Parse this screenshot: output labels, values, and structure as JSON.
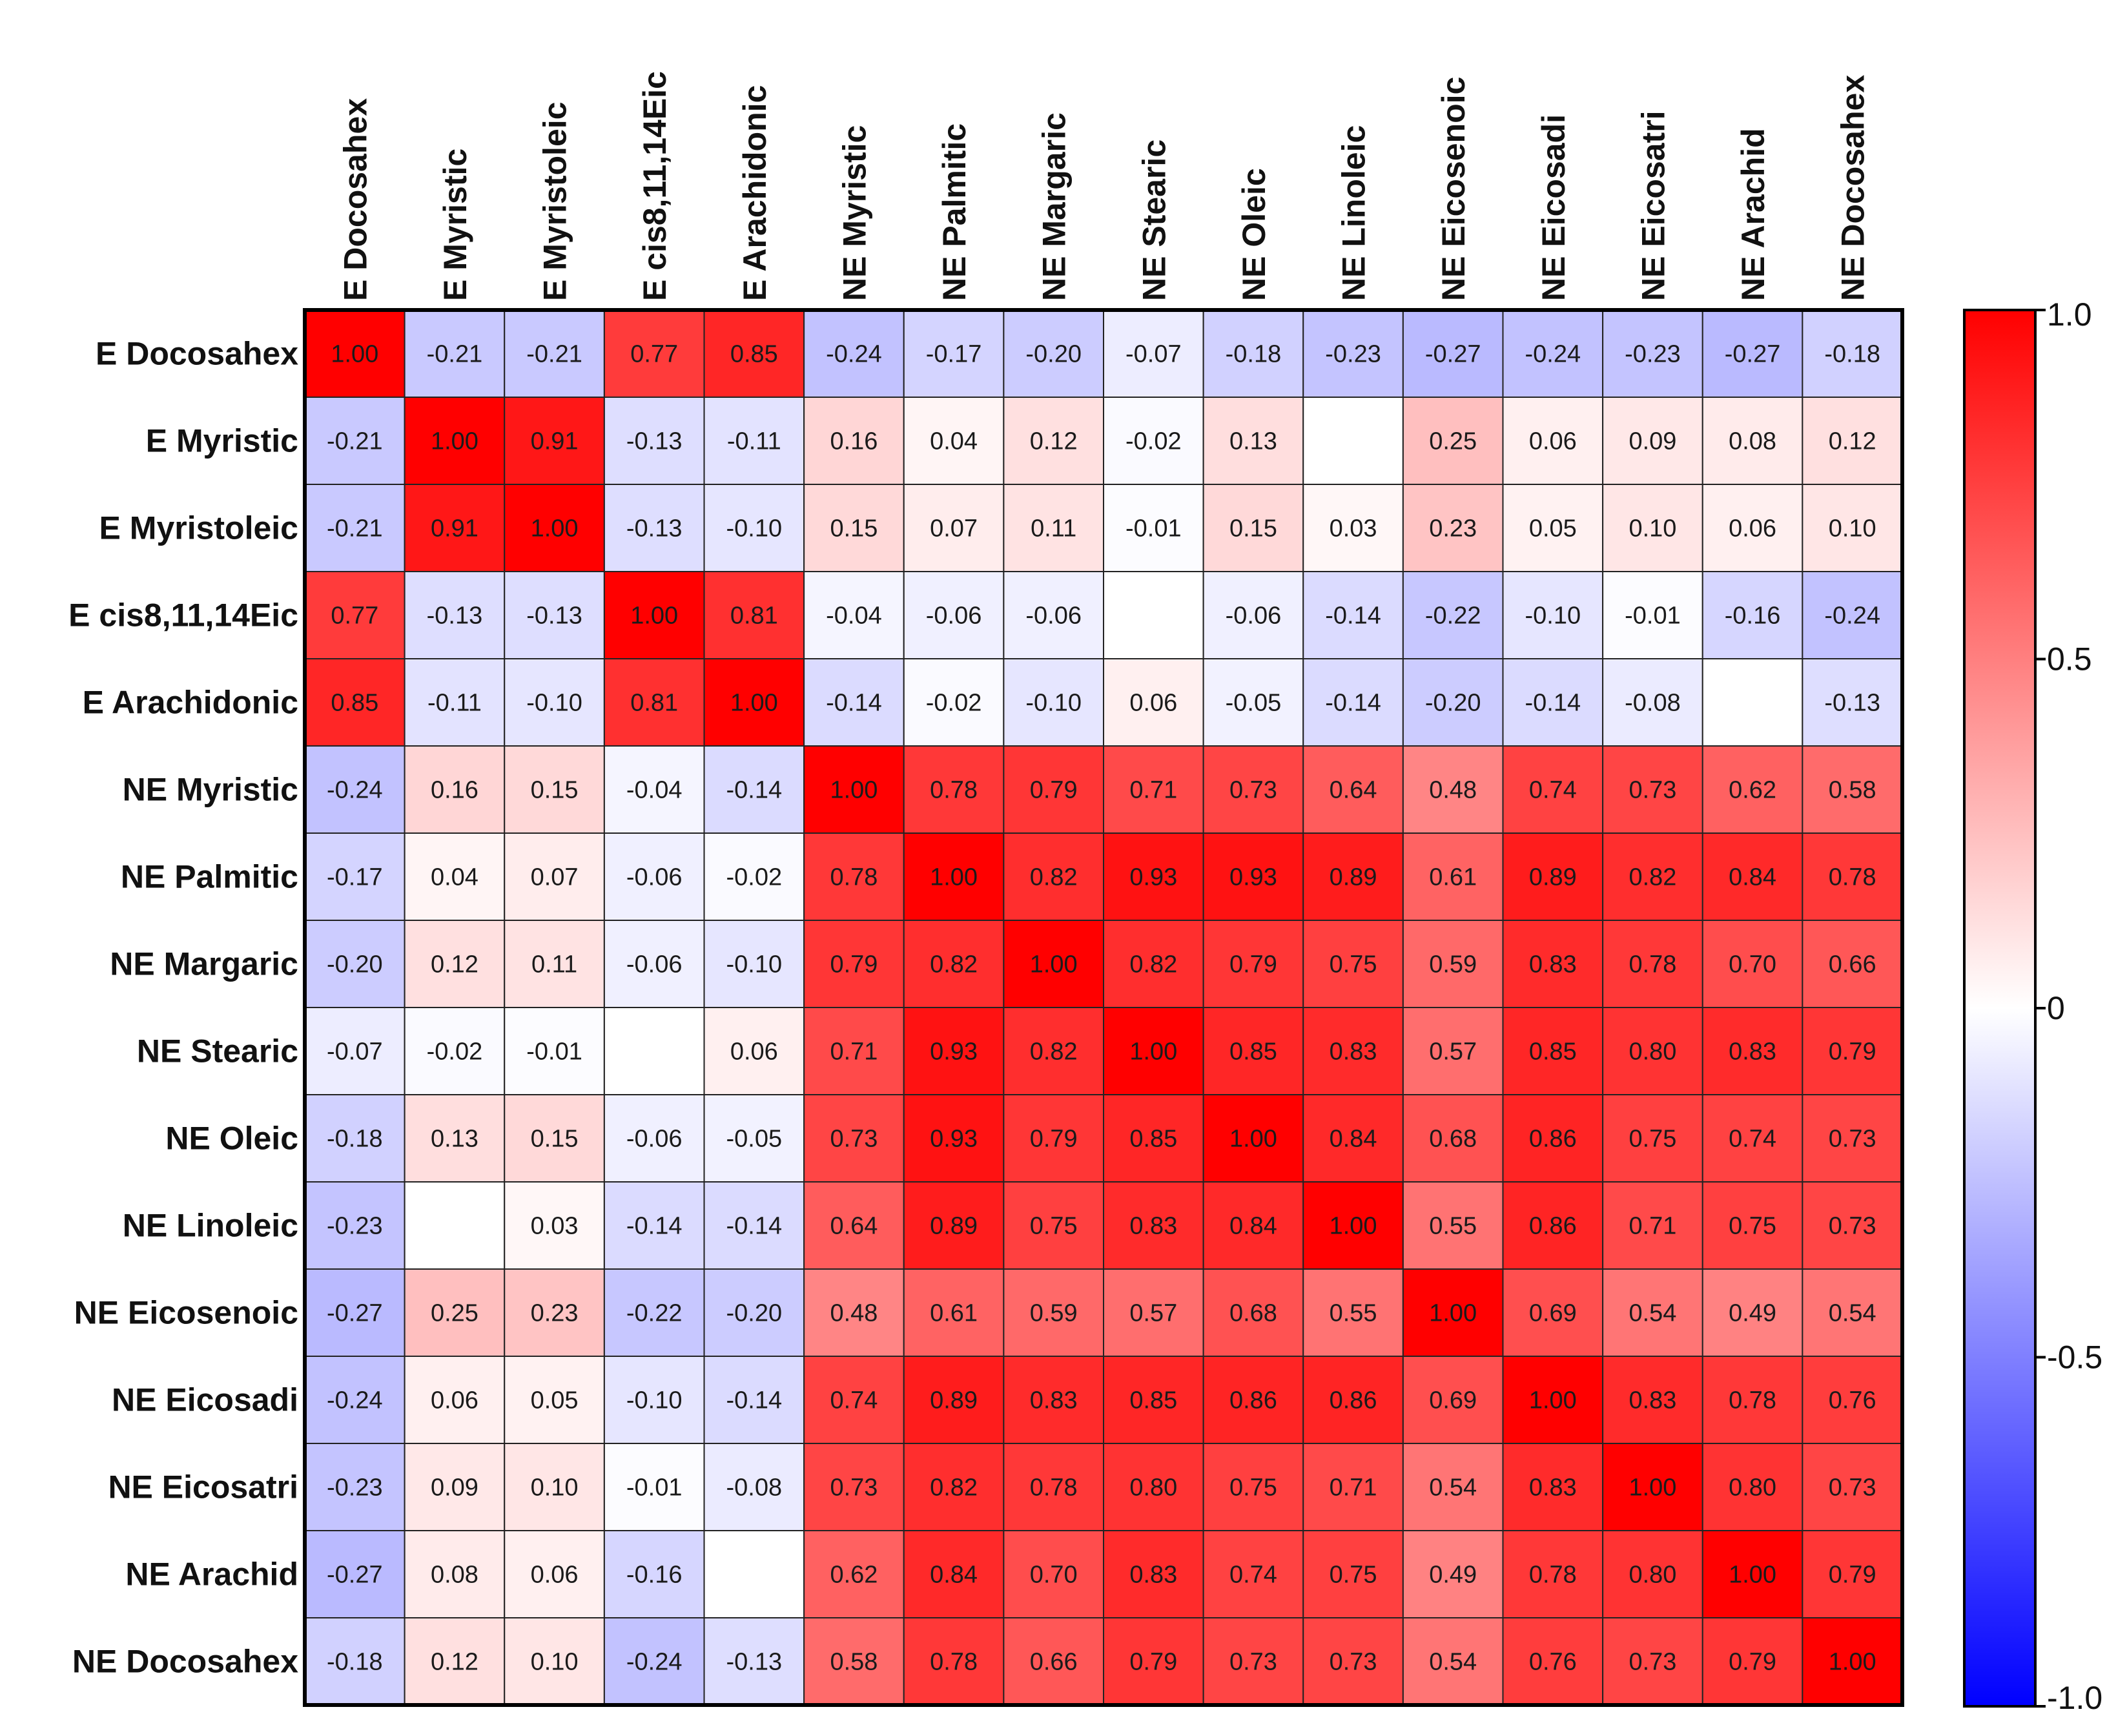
{
  "chart_data": {
    "type": "heatmap",
    "row_labels": [
      "E Docosahex",
      "E Myristic",
      "E Myristoleic",
      "E cis8,11,14Eic",
      "E Arachidonic",
      "NE Myristic",
      "NE Palmitic",
      "NE Margaric",
      "NE  Stearic",
      "NE Oleic",
      "NE Linoleic",
      "NE Eicosenoic",
      "NE Eicosadi",
      "NE Eicosatri",
      "NE Arachid",
      "NE Docosahex"
    ],
    "col_labels": [
      "E Docosahex",
      "E Myristic",
      "E Myristoleic",
      "E cis8,11,14Eic",
      "E Arachidonic",
      "NE Myristic",
      "NE Palmitic",
      "NE Margaric",
      "NE Stearic",
      "NE Oleic",
      "NE Linoleic",
      "NE Eicosenoic",
      "NE Eicosadi",
      "NE Eicosatri",
      "NE Arachid",
      "NE Docosahex"
    ],
    "values": [
      [
        1.0,
        -0.21,
        -0.21,
        0.77,
        0.85,
        -0.24,
        -0.17,
        -0.2,
        -0.07,
        -0.18,
        -0.23,
        -0.27,
        -0.24,
        -0.23,
        -0.27,
        -0.18
      ],
      [
        -0.21,
        1.0,
        0.91,
        -0.13,
        -0.11,
        0.16,
        0.04,
        0.12,
        -0.02,
        0.13,
        null,
        0.25,
        0.06,
        0.09,
        0.08,
        0.12
      ],
      [
        -0.21,
        0.91,
        1.0,
        -0.13,
        -0.1,
        0.15,
        0.07,
        0.11,
        -0.01,
        0.15,
        0.03,
        0.23,
        0.05,
        0.1,
        0.06,
        0.1
      ],
      [
        0.77,
        -0.13,
        -0.13,
        1.0,
        0.81,
        -0.04,
        -0.06,
        -0.06,
        null,
        -0.06,
        -0.14,
        -0.22,
        -0.1,
        -0.01,
        -0.16,
        -0.24
      ],
      [
        0.85,
        -0.11,
        -0.1,
        0.81,
        1.0,
        -0.14,
        -0.02,
        -0.1,
        0.06,
        -0.05,
        -0.14,
        -0.2,
        -0.14,
        -0.08,
        null,
        -0.13
      ],
      [
        -0.24,
        0.16,
        0.15,
        -0.04,
        -0.14,
        1.0,
        0.78,
        0.79,
        0.71,
        0.73,
        0.64,
        0.48,
        0.74,
        0.73,
        0.62,
        0.58
      ],
      [
        -0.17,
        0.04,
        0.07,
        -0.06,
        -0.02,
        0.78,
        1.0,
        0.82,
        0.93,
        0.93,
        0.89,
        0.61,
        0.89,
        0.82,
        0.84,
        0.78
      ],
      [
        -0.2,
        0.12,
        0.11,
        -0.06,
        -0.1,
        0.79,
        0.82,
        1.0,
        0.82,
        0.79,
        0.75,
        0.59,
        0.83,
        0.78,
        0.7,
        0.66
      ],
      [
        -0.07,
        -0.02,
        -0.01,
        null,
        0.06,
        0.71,
        0.93,
        0.82,
        1.0,
        0.85,
        0.83,
        0.57,
        0.85,
        0.8,
        0.83,
        0.79
      ],
      [
        -0.18,
        0.13,
        0.15,
        -0.06,
        -0.05,
        0.73,
        0.93,
        0.79,
        0.85,
        1.0,
        0.84,
        0.68,
        0.86,
        0.75,
        0.74,
        0.73
      ],
      [
        -0.23,
        null,
        0.03,
        -0.14,
        -0.14,
        0.64,
        0.89,
        0.75,
        0.83,
        0.84,
        1.0,
        0.55,
        0.86,
        0.71,
        0.75,
        0.73
      ],
      [
        -0.27,
        0.25,
        0.23,
        -0.22,
        -0.2,
        0.48,
        0.61,
        0.59,
        0.57,
        0.68,
        0.55,
        1.0,
        0.69,
        0.54,
        0.49,
        0.54
      ],
      [
        -0.24,
        0.06,
        0.05,
        -0.1,
        -0.14,
        0.74,
        0.89,
        0.83,
        0.85,
        0.86,
        0.86,
        0.69,
        1.0,
        0.83,
        0.78,
        0.76
      ],
      [
        -0.23,
        0.09,
        0.1,
        -0.01,
        -0.08,
        0.73,
        0.82,
        0.78,
        0.8,
        0.75,
        0.71,
        0.54,
        0.83,
        1.0,
        0.8,
        0.73
      ],
      [
        -0.27,
        0.08,
        0.06,
        -0.16,
        null,
        0.62,
        0.84,
        0.7,
        0.83,
        0.74,
        0.75,
        0.49,
        0.78,
        0.8,
        1.0,
        0.79
      ],
      [
        -0.18,
        0.12,
        0.1,
        -0.24,
        -0.13,
        0.58,
        0.78,
        0.66,
        0.79,
        0.73,
        0.73,
        0.54,
        0.76,
        0.73,
        0.79,
        1.0
      ]
    ],
    "colorbar": {
      "range": [
        -1.0,
        1.0
      ],
      "ticks": [
        1.0,
        0.5,
        0,
        -0.5,
        -1.0
      ],
      "tick_labels": [
        "1.0",
        "0.5",
        "0",
        "-0.5",
        "-1.0"
      ],
      "colors": {
        "low": "#0000ff",
        "mid": "#ffffff",
        "high": "#ff0000"
      },
      "placement": "right"
    },
    "grid": true
  }
}
